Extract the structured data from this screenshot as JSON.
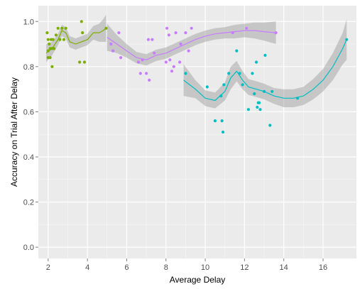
{
  "chart_data": {
    "type": "scatter",
    "title": "",
    "xlabel": "Average Delay",
    "ylabel": "Accuracy on Trial After Delay",
    "xlim": [
      1.5,
      17.7
    ],
    "ylim": [
      -0.05,
      1.07
    ],
    "x_ticks": [
      2,
      4,
      6,
      8,
      10,
      12,
      14,
      16
    ],
    "y_ticks": [
      0.0,
      0.2,
      0.4,
      0.6,
      0.8,
      1.0
    ],
    "x_tick_labels": [
      "2",
      "4",
      "6",
      "8",
      "10",
      "12",
      "14",
      "16"
    ],
    "y_tick_labels": [
      "0.0",
      "0.2",
      "0.4",
      "0.6",
      "0.8",
      "1.0"
    ],
    "grid": true,
    "legend": "none",
    "background": "#ebebeb",
    "grid_color": "#ffffff",
    "band_color": "#999999",
    "series": [
      {
        "color": "#7cae00",
        "points": [
          [
            1.95,
            0.95
          ],
          [
            2.0,
            0.92
          ],
          [
            2.0,
            0.87
          ],
          [
            2.0,
            0.84
          ],
          [
            2.05,
            0.9
          ],
          [
            2.1,
            0.88
          ],
          [
            2.1,
            0.84
          ],
          [
            2.15,
            0.92
          ],
          [
            2.2,
            0.8
          ],
          [
            2.2,
            0.88
          ],
          [
            2.25,
            0.92
          ],
          [
            2.3,
            0.88
          ],
          [
            2.4,
            0.94
          ],
          [
            2.5,
            0.97
          ],
          [
            2.6,
            0.92
          ],
          [
            2.7,
            0.97
          ],
          [
            2.8,
            0.92
          ],
          [
            2.9,
            0.97
          ],
          [
            3.6,
            0.82
          ],
          [
            3.7,
            1.0
          ],
          [
            3.75,
            0.95
          ],
          [
            3.85,
            0.82
          ],
          [
            4.95,
            0.97
          ]
        ],
        "fit": [
          [
            1.9,
            0.86
          ],
          [
            2.2,
            0.88
          ],
          [
            2.5,
            0.92
          ],
          [
            2.7,
            0.96
          ],
          [
            2.9,
            0.95
          ],
          [
            3.1,
            0.91
          ],
          [
            3.4,
            0.9
          ],
          [
            3.7,
            0.91
          ],
          [
            4.0,
            0.92
          ],
          [
            4.3,
            0.95
          ],
          [
            4.6,
            0.95
          ],
          [
            4.8,
            0.96
          ],
          [
            4.95,
            0.97
          ]
        ],
        "band_halfwidth": [
          0.04,
          0.03,
          0.025,
          0.025,
          0.025,
          0.025,
          0.025,
          0.025,
          0.025,
          0.03,
          0.04,
          0.05,
          0.06
        ]
      },
      {
        "color": "#c77cff",
        "points": [
          [
            5.2,
            0.9
          ],
          [
            5.3,
            0.87
          ],
          [
            5.6,
            0.95
          ],
          [
            5.7,
            0.84
          ],
          [
            6.6,
            0.82
          ],
          [
            6.7,
            0.77
          ],
          [
            6.8,
            0.83
          ],
          [
            7.0,
            0.77
          ],
          [
            7.1,
            0.92
          ],
          [
            7.15,
            0.74
          ],
          [
            7.3,
            0.92
          ],
          [
            7.4,
            0.86
          ],
          [
            8.0,
            0.82
          ],
          [
            8.05,
            0.97
          ],
          [
            8.15,
            0.94
          ],
          [
            8.2,
            0.83
          ],
          [
            8.3,
            0.78
          ],
          [
            8.4,
            0.8
          ],
          [
            8.5,
            0.95
          ],
          [
            8.7,
            0.82
          ],
          [
            8.75,
            0.9
          ],
          [
            9.0,
            0.95
          ],
          [
            9.15,
            0.87
          ],
          [
            9.3,
            0.97
          ],
          [
            11.4,
            0.95
          ],
          [
            12.1,
            0.97
          ],
          [
            13.6,
            0.95
          ]
        ],
        "fit": [
          [
            5.0,
            0.93
          ],
          [
            5.5,
            0.9
          ],
          [
            6.0,
            0.87
          ],
          [
            6.5,
            0.84
          ],
          [
            7.0,
            0.83
          ],
          [
            7.5,
            0.85
          ],
          [
            8.0,
            0.86
          ],
          [
            8.5,
            0.88
          ],
          [
            9.0,
            0.9
          ],
          [
            9.5,
            0.92
          ],
          [
            10.0,
            0.935
          ],
          [
            10.5,
            0.945
          ],
          [
            11.0,
            0.95
          ],
          [
            11.5,
            0.955
          ],
          [
            12.0,
            0.96
          ],
          [
            12.5,
            0.96
          ],
          [
            13.0,
            0.955
          ],
          [
            13.6,
            0.95
          ]
        ],
        "band_halfwidth": [
          0.06,
          0.04,
          0.03,
          0.025,
          0.025,
          0.025,
          0.025,
          0.025,
          0.025,
          0.025,
          0.025,
          0.025,
          0.025,
          0.03,
          0.03,
          0.035,
          0.04,
          0.05
        ]
      },
      {
        "color": "#00bfc4",
        "points": [
          [
            9.0,
            0.77
          ],
          [
            10.1,
            0.71
          ],
          [
            10.5,
            0.56
          ],
          [
            10.8,
            0.67
          ],
          [
            10.85,
            0.56
          ],
          [
            10.9,
            0.51
          ],
          [
            10.95,
            0.72
          ],
          [
            11.2,
            0.77
          ],
          [
            11.6,
            0.87
          ],
          [
            11.75,
            0.77
          ],
          [
            11.9,
            0.72
          ],
          [
            12.2,
            0.61
          ],
          [
            12.4,
            0.77
          ],
          [
            12.5,
            0.68
          ],
          [
            12.6,
            0.82
          ],
          [
            12.65,
            0.62
          ],
          [
            12.7,
            0.64
          ],
          [
            12.75,
            0.64
          ],
          [
            12.8,
            0.61
          ],
          [
            13.0,
            0.69
          ],
          [
            13.05,
            0.85
          ],
          [
            13.3,
            0.54
          ],
          [
            13.4,
            0.69
          ],
          [
            14.7,
            0.66
          ],
          [
            17.2,
            0.92
          ]
        ],
        "fit": [
          [
            8.9,
            0.74
          ],
          [
            9.5,
            0.7
          ],
          [
            10.0,
            0.66
          ],
          [
            10.5,
            0.65
          ],
          [
            11.0,
            0.69
          ],
          [
            11.3,
            0.75
          ],
          [
            11.6,
            0.78
          ],
          [
            11.9,
            0.74
          ],
          [
            12.2,
            0.71
          ],
          [
            12.6,
            0.7
          ],
          [
            13.0,
            0.69
          ],
          [
            13.5,
            0.67
          ],
          [
            14.0,
            0.66
          ],
          [
            14.5,
            0.66
          ],
          [
            15.0,
            0.67
          ],
          [
            15.5,
            0.7
          ],
          [
            16.0,
            0.74
          ],
          [
            16.5,
            0.8
          ],
          [
            17.0,
            0.88
          ],
          [
            17.2,
            0.92
          ]
        ],
        "band_halfwidth": [
          0.07,
          0.04,
          0.035,
          0.035,
          0.04,
          0.05,
          0.045,
          0.04,
          0.035,
          0.035,
          0.035,
          0.035,
          0.04,
          0.04,
          0.04,
          0.045,
          0.05,
          0.06,
          0.07,
          0.09
        ]
      }
    ]
  }
}
